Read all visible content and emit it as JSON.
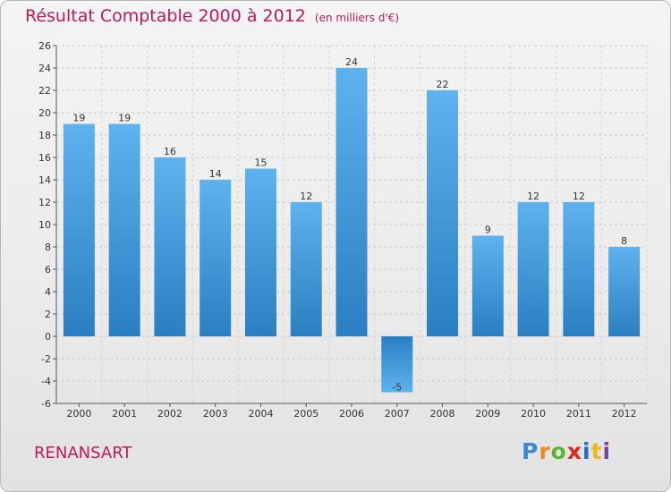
{
  "header": {
    "title": "Résultat Comptable 2000 à 2012",
    "subtitle": "(en milliers d'€)"
  },
  "commune": "RENANSART",
  "logo": {
    "letters": [
      "P",
      "r",
      "o",
      "x",
      "i",
      "t",
      "i"
    ]
  },
  "colors": {
    "title": "#c0185c",
    "bar_light": "#5aaeea",
    "bar_dark": "#2a7fc2",
    "grid": "#c8c8c8"
  },
  "chart_data": {
    "type": "bar",
    "title": "Résultat Comptable 2000 à 2012",
    "unit": "(en milliers d'€)",
    "xlabel": "",
    "ylabel": "",
    "categories": [
      "2000",
      "2001",
      "2002",
      "2003",
      "2004",
      "2005",
      "2006",
      "2007",
      "2008",
      "2009",
      "2010",
      "2011",
      "2012"
    ],
    "values": [
      19,
      19,
      16,
      14,
      15,
      12,
      24,
      -5,
      22,
      9,
      12,
      12,
      8
    ],
    "ylim": [
      -6,
      26
    ],
    "yticks": [
      -6,
      -4,
      -2,
      0,
      2,
      4,
      6,
      8,
      10,
      12,
      14,
      16,
      18,
      20,
      22,
      24,
      26
    ],
    "grid": true,
    "legend": "none"
  }
}
